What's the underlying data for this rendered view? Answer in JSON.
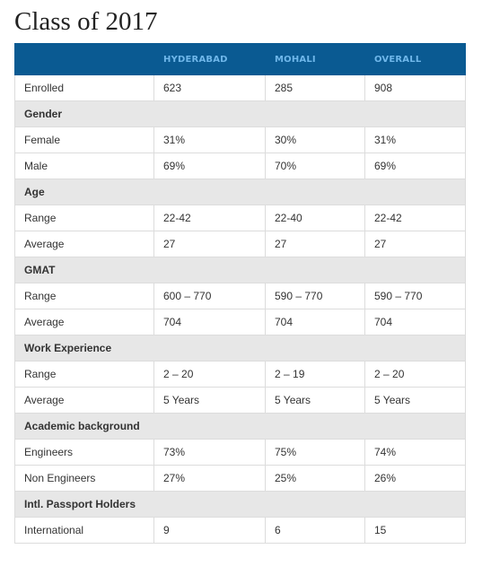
{
  "title": "Class of 2017",
  "table": {
    "headers": [
      "",
      "HYDERABAD",
      "MOHALI",
      "OVERALL"
    ],
    "enrolled": {
      "label": "Enrolled",
      "values": [
        "623",
        "285",
        "908"
      ]
    },
    "gender": {
      "heading": "Gender",
      "female": {
        "label": "Female",
        "values": [
          "31%",
          "30%",
          "31%"
        ]
      },
      "male": {
        "label": "Male",
        "values": [
          "69%",
          "70%",
          "69%"
        ]
      }
    },
    "age": {
      "heading": "Age",
      "range": {
        "label": "Range",
        "values": [
          "22-42",
          "22-40",
          "22-42"
        ]
      },
      "average": {
        "label": "Average",
        "values": [
          "27",
          "27",
          "27"
        ]
      }
    },
    "gmat": {
      "heading": "GMAT",
      "range": {
        "label": "Range",
        "values": [
          "600 – 770",
          "590 – 770",
          "590 – 770"
        ]
      },
      "average": {
        "label": "Average",
        "values": [
          "704",
          "704",
          "704"
        ]
      }
    },
    "work_experience": {
      "heading": "Work Experience",
      "range": {
        "label": "Range",
        "values": [
          "2 – 20",
          "2 – 19",
          "2 – 20"
        ]
      },
      "average": {
        "label": "Average",
        "values": [
          "5 Years",
          "5 Years",
          "5 Years"
        ]
      }
    },
    "academic_background": {
      "heading": "Academic background",
      "engineers": {
        "label": "Engineers",
        "values": [
          "73%",
          "75%",
          "74%"
        ]
      },
      "non_engineers": {
        "label": "Non Engineers",
        "values": [
          "27%",
          "25%",
          "26%"
        ]
      }
    },
    "passport": {
      "heading": "Intl. Passport Holders",
      "international": {
        "label": "International",
        "values": [
          "9",
          "6",
          "15"
        ]
      }
    }
  },
  "colors": {
    "header_bg": "#0a5a92",
    "header_text": "#6fb7ea",
    "section_bg": "#e7e7e7",
    "border": "#dcdcdc"
  }
}
